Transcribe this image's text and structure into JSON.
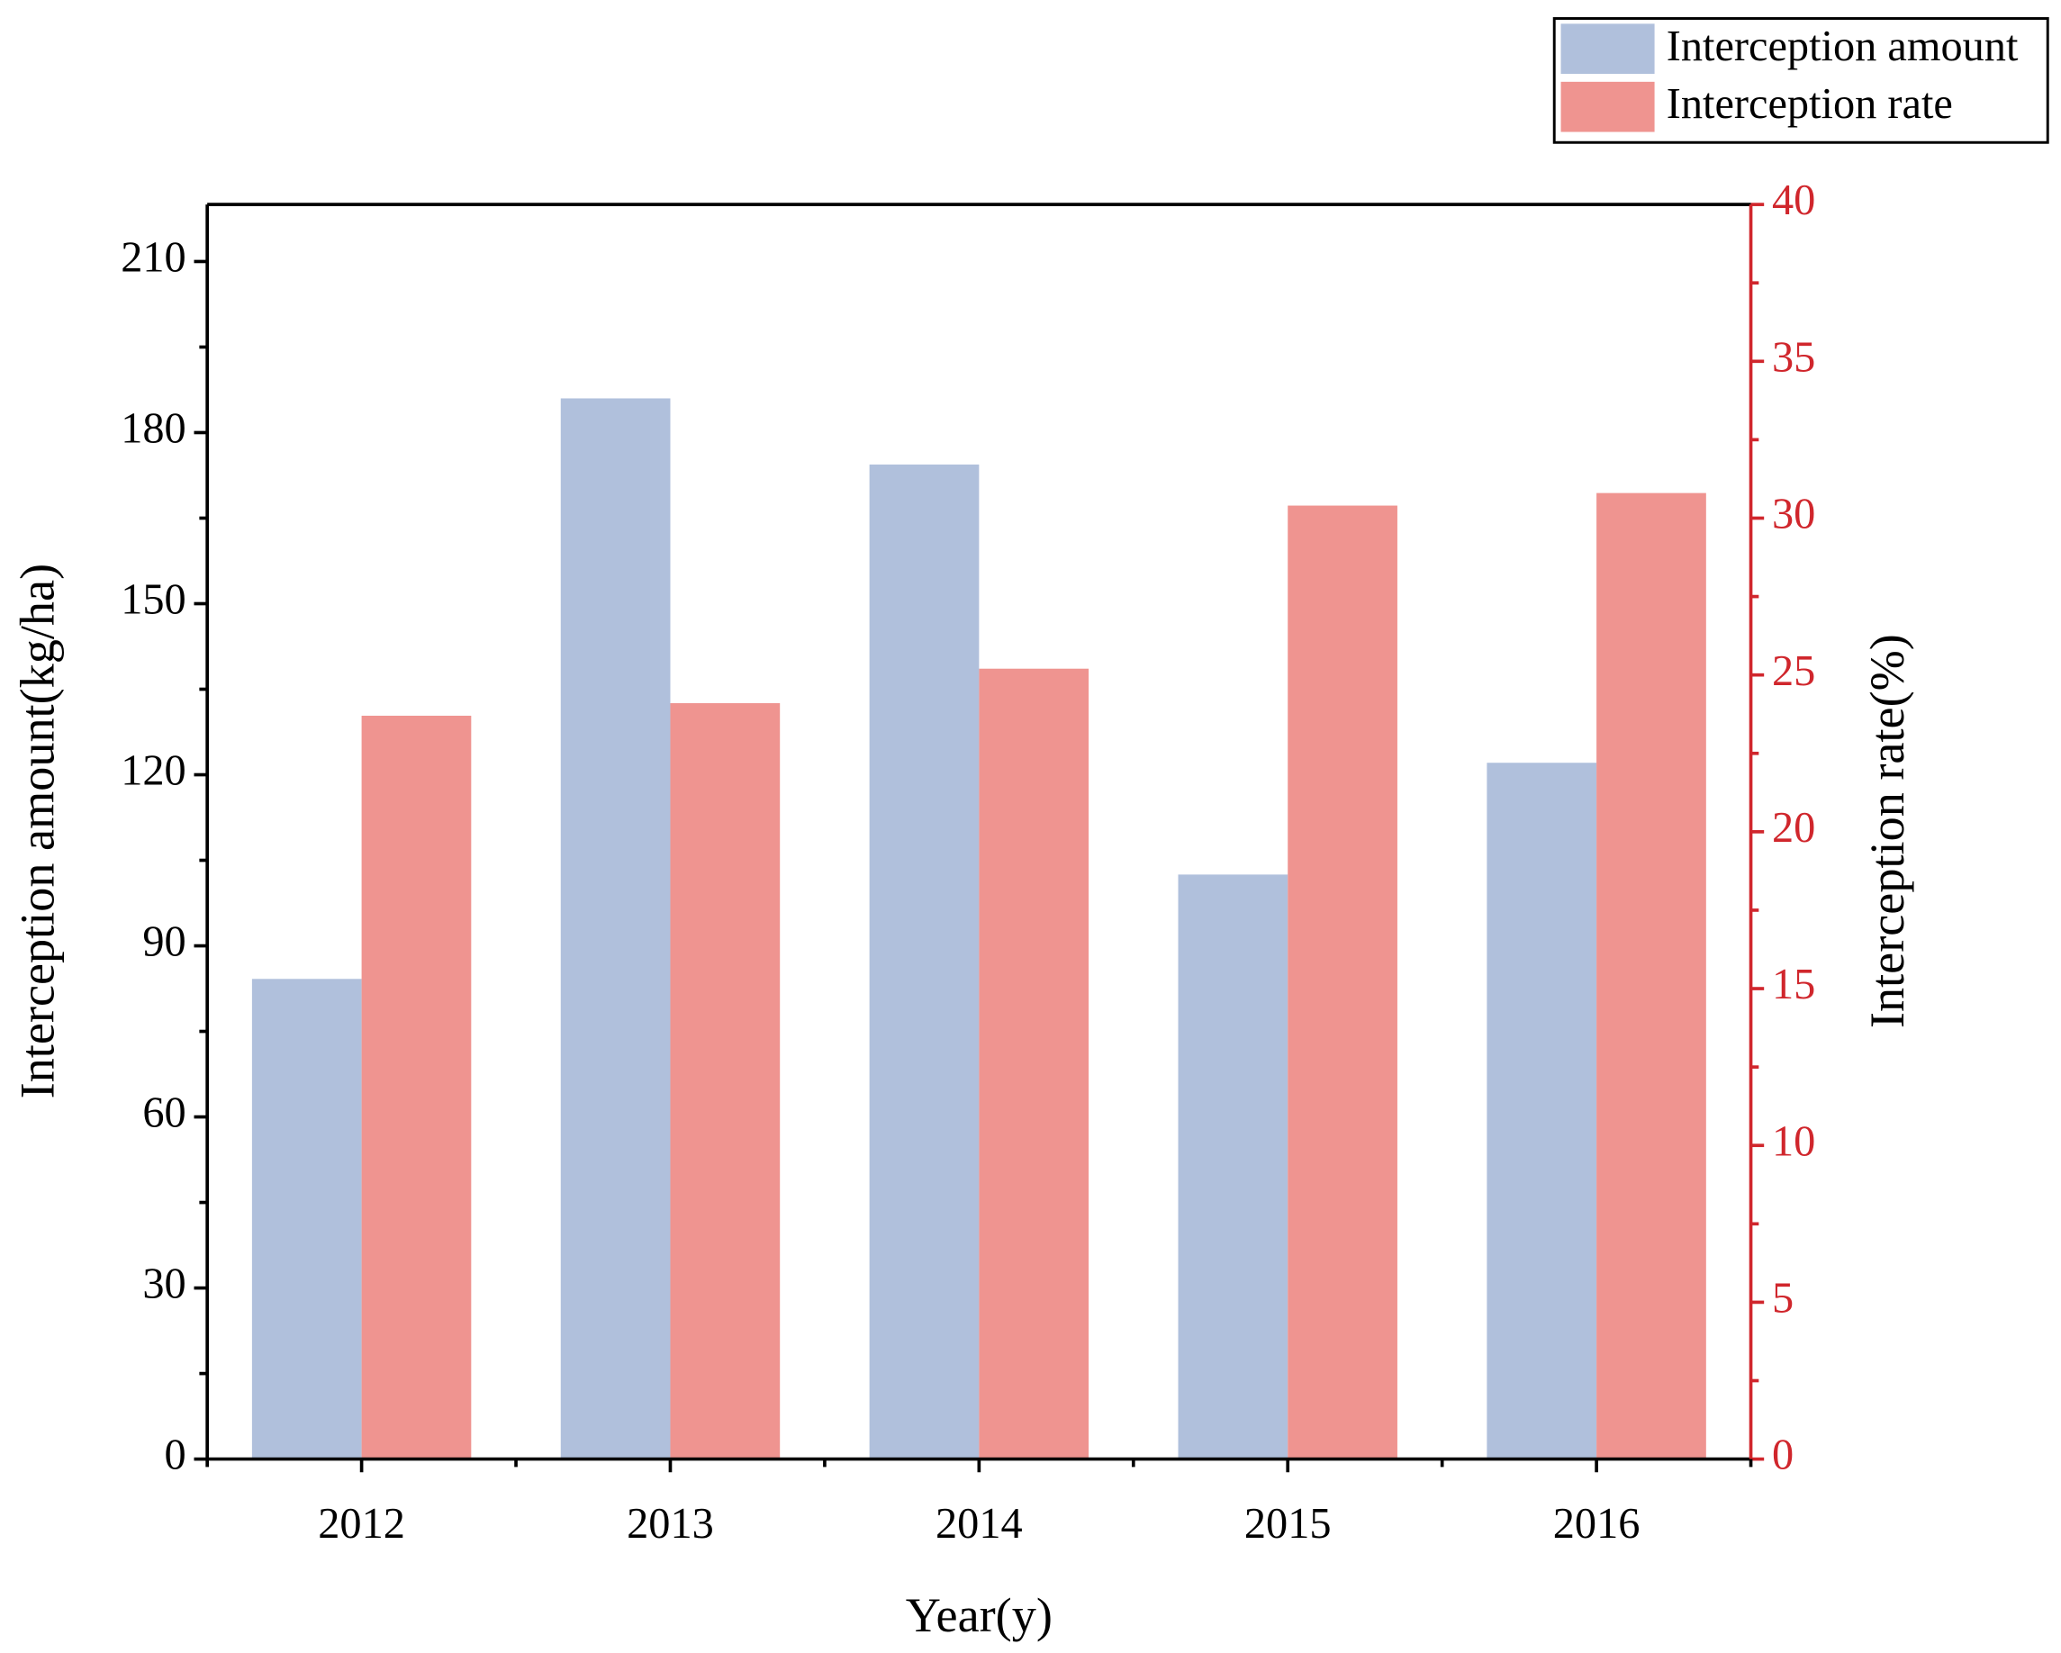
{
  "chart_data": {
    "type": "bar",
    "x_label": "Year(y)",
    "y_label": "Interception amount(kg/ha)",
    "y2_label": "Interception rate(%)",
    "categories": [
      "2012",
      "2013",
      "2014",
      "2015",
      "2016"
    ],
    "series": [
      {
        "name": "Interception amount",
        "color": "#b0c0dc",
        "values": [
          84.2,
          186.0,
          174.4,
          102.5,
          122.1
        ]
      },
      {
        "name": "Interception rate",
        "color": "#ef9490",
        "axis": "y2",
        "values": [
          23.7,
          24.1,
          25.2,
          30.4,
          30.8
        ]
      }
    ],
    "ylim": [
      0,
      220
    ],
    "yticks": [
      0,
      30,
      60,
      90,
      120,
      150,
      180,
      210
    ],
    "y2lim": [
      0,
      40
    ],
    "y2ticks": [
      0,
      5,
      10,
      15,
      20,
      25,
      30,
      35,
      40
    ],
    "y2_color": "#d0262c",
    "legend": "top-right",
    "grid": false
  }
}
